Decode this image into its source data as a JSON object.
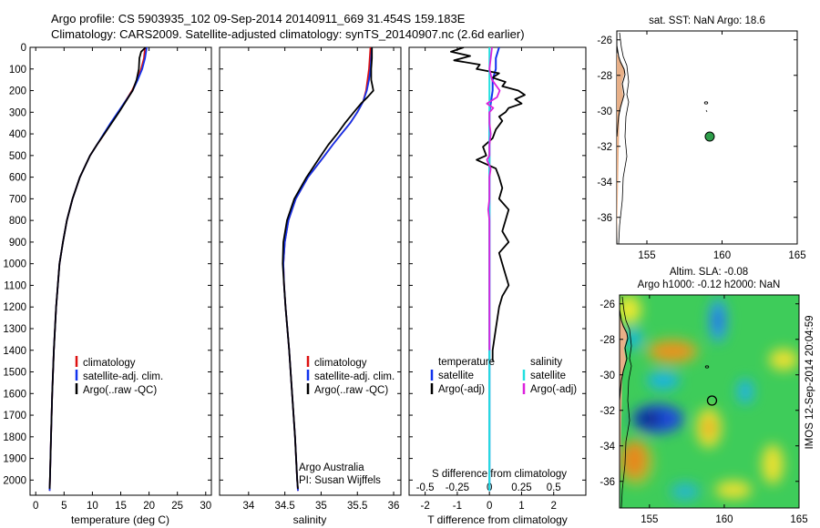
{
  "header": {
    "line1": "Argo profile: CS 5903935_102 09-Sep-2014 20140911_669 31.454S 159.183E",
    "line2": "Climatology: CARS2009. Satellite-adjusted climatology: synTS_20140907.nc (2.6d earlier)"
  },
  "side_label": "IMOS 12-Sep-2014 20:04:59",
  "colors": {
    "climatology": "#dd1111",
    "satellite": "#1133ee",
    "argo": "#000000",
    "sal_satellite": "#22e0e0",
    "sal_argo": "#dd22dd",
    "land": "#e8b088",
    "float_marker": "#2e9e4a"
  },
  "chart_data": [
    {
      "type": "line",
      "panel": "temperature",
      "xlabel": "temperature (deg C)",
      "xlim": [
        -1,
        31
      ],
      "xticks": [
        0,
        5,
        10,
        15,
        20,
        25,
        30
      ],
      "ylim": [
        0,
        2070
      ],
      "yticks": [
        0,
        100,
        200,
        300,
        400,
        500,
        600,
        700,
        800,
        900,
        1000,
        1100,
        1200,
        1300,
        1400,
        1500,
        1600,
        1700,
        1800,
        1900,
        2000
      ],
      "legend": [
        "climatology",
        "satellite-adj. clim.",
        "Argo(..raw -QC)"
      ],
      "series": [
        {
          "name": "climatology",
          "depth": [
            0,
            50,
            100,
            150,
            200,
            250,
            300,
            350,
            400,
            450,
            500,
            600,
            700,
            800,
            900,
            1000,
            1200,
            1400,
            1600,
            1800,
            2000,
            2050
          ],
          "values": [
            19.3,
            19.1,
            18.6,
            17.9,
            17.0,
            15.8,
            14.6,
            13.3,
            12.1,
            10.8,
            9.6,
            7.8,
            6.5,
            5.5,
            4.8,
            4.2,
            3.6,
            3.2,
            2.9,
            2.7,
            2.5,
            2.45
          ]
        },
        {
          "name": "satellite-adj. clim.",
          "depth": [
            0,
            50,
            100,
            150,
            200,
            250,
            300,
            350,
            400,
            450,
            500,
            600,
            700,
            800,
            900,
            1000,
            1200,
            1400,
            1600,
            1800,
            2000,
            2050
          ],
          "values": [
            19.6,
            19.3,
            18.8,
            18.0,
            17.1,
            15.8,
            14.5,
            13.2,
            12.0,
            10.8,
            9.6,
            7.8,
            6.5,
            5.5,
            4.8,
            4.2,
            3.6,
            3.2,
            2.9,
            2.7,
            2.5,
            2.45
          ]
        },
        {
          "name": "Argo(..raw -QC)",
          "depth": [
            0,
            20,
            50,
            100,
            150,
            200,
            250,
            300,
            350,
            400,
            450,
            500,
            600,
            700,
            800,
            900,
            1000,
            1200,
            1400,
            1600,
            1800,
            2000,
            2040
          ],
          "values": [
            19.4,
            18.6,
            18.3,
            18.2,
            17.8,
            17.1,
            15.9,
            14.7,
            13.4,
            12.1,
            10.8,
            9.6,
            7.8,
            6.5,
            5.5,
            4.8,
            4.2,
            3.6,
            3.2,
            2.9,
            2.7,
            2.5,
            2.45
          ]
        }
      ]
    },
    {
      "type": "line",
      "panel": "salinity",
      "xlabel": "salinity",
      "xlim": [
        33.6,
        36.1
      ],
      "xticks": [
        34,
        34.5,
        35,
        35.5,
        36
      ],
      "ylim": [
        0,
        2070
      ],
      "legend": [
        "climatology",
        "satellite-adj. clim.",
        "Argo(..raw -QC)"
      ],
      "annotation_lines": [
        "Argo Australia",
        "PI: Susan Wijffels"
      ],
      "series": [
        {
          "name": "climatology",
          "depth": [
            0,
            50,
            100,
            150,
            200,
            250,
            300,
            350,
            400,
            450,
            500,
            600,
            700,
            800,
            900,
            1000,
            1100,
            1200,
            1400,
            1600,
            1800,
            2000,
            2050
          ],
          "values": [
            35.68,
            35.67,
            35.66,
            35.64,
            35.62,
            35.58,
            35.5,
            35.4,
            35.28,
            35.16,
            35.05,
            34.82,
            34.65,
            34.55,
            34.5,
            34.48,
            34.49,
            34.51,
            34.56,
            34.6,
            34.64,
            34.67,
            34.68
          ]
        },
        {
          "name": "satellite-adj. clim.",
          "depth": [
            0,
            50,
            100,
            150,
            200,
            250,
            300,
            350,
            400,
            450,
            500,
            600,
            700,
            800,
            900,
            1000,
            1100,
            1200,
            1400,
            1600,
            1800,
            2000,
            2050
          ],
          "values": [
            35.7,
            35.69,
            35.68,
            35.66,
            35.63,
            35.58,
            35.5,
            35.4,
            35.28,
            35.16,
            35.05,
            34.82,
            34.65,
            34.55,
            34.5,
            34.48,
            34.49,
            34.51,
            34.56,
            34.6,
            34.64,
            34.67,
            34.68
          ]
        },
        {
          "name": "Argo(..raw -QC)",
          "depth": [
            0,
            50,
            100,
            150,
            200,
            230,
            260,
            300,
            350,
            400,
            450,
            500,
            600,
            700,
            800,
            900,
            1000,
            1100,
            1200,
            1400,
            1600,
            1800,
            2000,
            2040
          ],
          "values": [
            35.7,
            35.7,
            35.69,
            35.69,
            35.72,
            35.64,
            35.55,
            35.45,
            35.33,
            35.22,
            35.1,
            35.0,
            34.8,
            34.63,
            34.53,
            34.48,
            34.47,
            34.49,
            34.51,
            34.56,
            34.6,
            34.64,
            34.67,
            34.68
          ]
        }
      ]
    },
    {
      "type": "line",
      "panel": "difference",
      "xlabel": "T difference from climatology",
      "xlabel_top": "S difference from climatology",
      "xlim": [
        -2.5,
        3.0
      ],
      "xticks": [
        -2,
        -1,
        0,
        1,
        2
      ],
      "xticks_top": [
        -0.5,
        -0.25,
        0,
        0.25,
        0.5
      ],
      "xticklabels_top": [
        "-0.5",
        "-0.25",
        "0",
        "0.25",
        "0.5"
      ],
      "ylim": [
        0,
        2070
      ],
      "legend_temperature_title": "temperature",
      "legend_salinity_title": "salinity",
      "legend_temperature": [
        "satellite",
        "Argo(-adj)"
      ],
      "legend_salinity": [
        "satellite",
        "Argo(-adj)"
      ],
      "series": [
        {
          "name": "temperature satellite",
          "depth": [
            0,
            50,
            100,
            150,
            200,
            300,
            500,
            800,
            1200,
            1600,
            2000,
            2050
          ],
          "values": [
            0.3,
            0.2,
            0.2,
            0.1,
            0.1,
            0.0,
            0.0,
            0.0,
            0.0,
            0.0,
            0.0,
            0.0
          ]
        },
        {
          "name": "temperature Argo(-adj)",
          "depth": [
            0,
            20,
            40,
            60,
            80,
            100,
            120,
            140,
            160,
            180,
            200,
            220,
            240,
            260,
            280,
            300,
            320,
            340,
            380,
            420,
            460,
            500,
            520,
            560,
            600,
            650,
            700,
            750,
            800,
            850,
            900,
            950,
            1000,
            1050,
            1100,
            1150,
            1200,
            1300,
            1400,
            1450
          ],
          "values": [
            -0.8,
            -1.2,
            -0.6,
            -1.1,
            -0.3,
            -0.4,
            0.3,
            0.1,
            0.5,
            0.4,
            0.9,
            1.1,
            0.8,
            1.0,
            0.6,
            0.5,
            0.3,
            0.4,
            0.2,
            0.1,
            -0.2,
            -0.1,
            -0.4,
            0.2,
            0.3,
            0.4,
            0.3,
            0.6,
            0.5,
            0.4,
            0.6,
            0.3,
            0.4,
            0.5,
            0.6,
            0.4,
            0.3,
            0.2,
            0.1,
            0.1
          ]
        },
        {
          "name": "salinity satellite",
          "depth": [
            0,
            100,
            200,
            300,
            500,
            800,
            1200,
            1600,
            2000,
            2050
          ],
          "values": [
            0.0,
            0.0,
            0.0,
            0.0,
            0.0,
            0.0,
            0.0,
            0.0,
            0.0,
            0.0
          ]
        },
        {
          "name": "salinity Argo(-adj)",
          "depth": [
            0,
            50,
            100,
            150,
            200,
            230,
            260,
            280,
            300,
            350,
            400,
            450,
            500,
            520,
            560,
            600,
            700,
            750,
            800,
            1000,
            1200,
            1400
          ],
          "values": [
            0.02,
            0.01,
            0.0,
            0.02,
            0.08,
            0.06,
            -0.02,
            0.03,
            0.0,
            0.0,
            0.01,
            0.0,
            0.0,
            -0.02,
            0.01,
            0.0,
            0.0,
            -0.01,
            0.0,
            0.0,
            0.0,
            0.0
          ]
        }
      ]
    },
    {
      "type": "map",
      "panel": "sst_map",
      "title": "sat. SST: NaN  Argo: 18.6",
      "xlim": [
        153,
        165
      ],
      "ylim": [
        -37.5,
        -25.5
      ],
      "xticks": [
        155,
        160,
        165
      ],
      "yticks": [
        -26,
        -28,
        -30,
        -32,
        -34,
        -36
      ],
      "float_position": {
        "lon": 159.18,
        "lat": -31.45
      }
    },
    {
      "type": "heatmap",
      "panel": "sla_map",
      "title_line1": "Altim. SLA: -0.08",
      "title_line2": "Argo h1000: -0.12  h2000: NaN",
      "xlim": [
        153,
        165
      ],
      "ylim": [
        -37.5,
        -25.5
      ],
      "xticks": [
        155,
        160,
        165
      ],
      "yticks": [
        -26,
        -28,
        -30,
        -32,
        -34,
        -36
      ],
      "float_position": {
        "lon": 159.18,
        "lat": -31.45
      }
    }
  ]
}
